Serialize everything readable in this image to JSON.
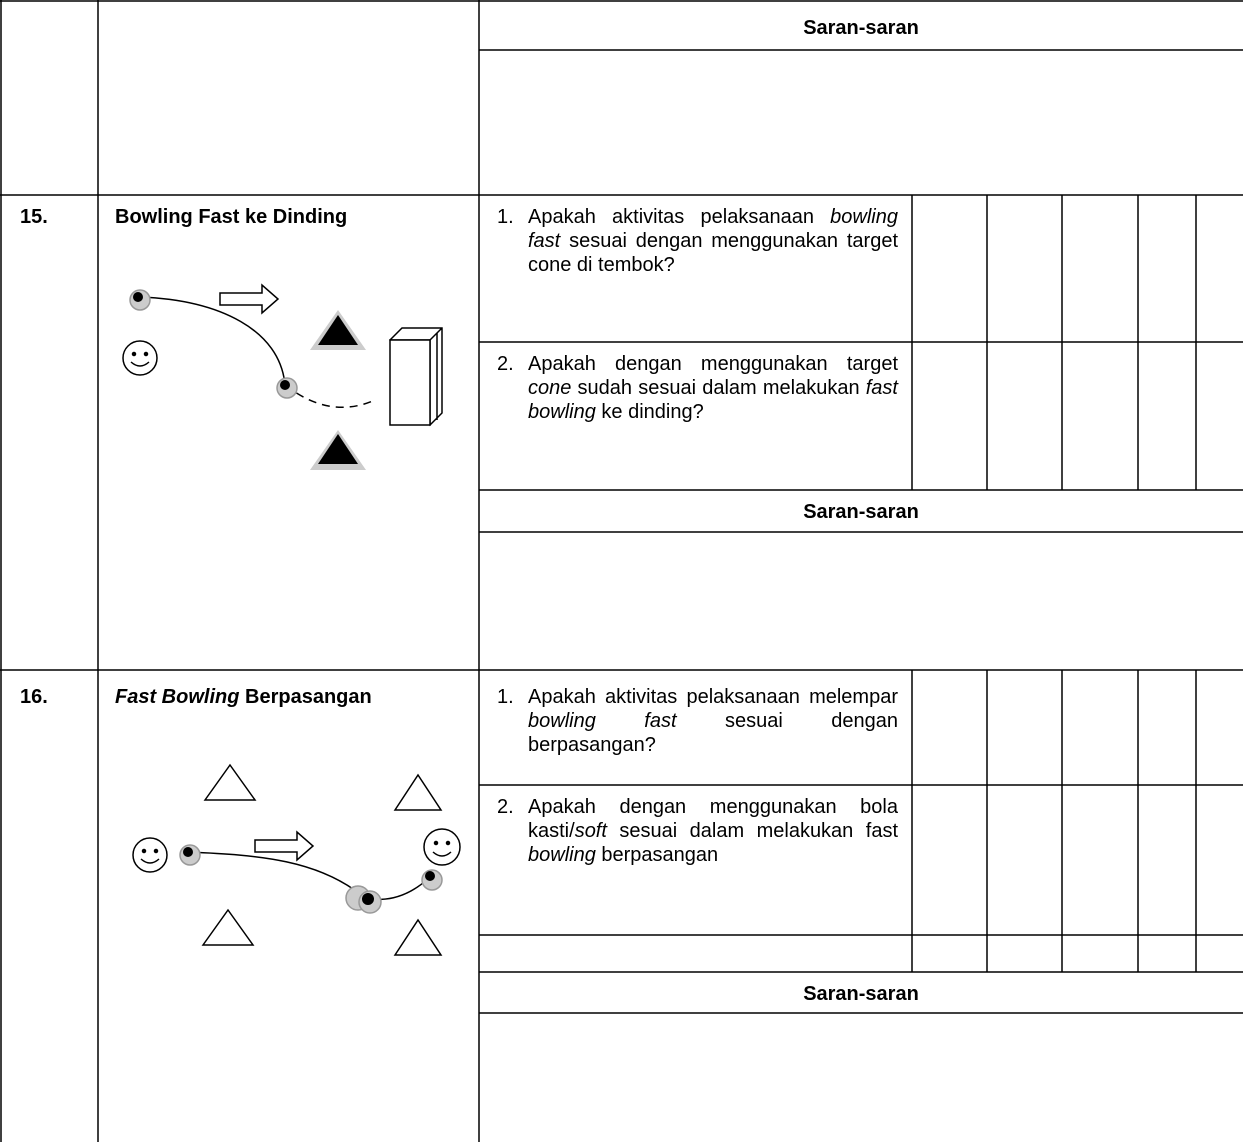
{
  "rows": [
    {
      "saran": "Saran-saran"
    },
    {
      "number": "15.",
      "title": [
        "Bowling Fast ke Dinding"
      ],
      "questions": [
        {
          "number": "1.",
          "text": [
            "Apakah aktivitas pelaksanaan ",
            "bowling fast",
            " sesuai dengan menggunakan target cone di tembok?"
          ]
        },
        {
          "number": "2.",
          "text": [
            "Apakah dengan menggunakan target ",
            "cone",
            " sudah sesuai dalam melakukan ",
            "fast bowling",
            " ke dinding?"
          ]
        }
      ],
      "saran": "Saran-saran"
    },
    {
      "number": "16.",
      "title": [
        "Fast Bowling",
        " Berpasangan"
      ],
      "questions": [
        {
          "number": "1.",
          "text": [
            "Apakah aktivitas pelaksanaan melempar ",
            "bowling fast",
            " sesuai dengan berpasangan?"
          ]
        },
        {
          "number": "2.",
          "text": [
            "Apakah dengan menggunakan bola kasti/",
            "soft",
            " sesuai dalam melakukan fast ",
            "bowling",
            " berpasangan"
          ]
        }
      ],
      "saran": "Saran-saran"
    }
  ]
}
